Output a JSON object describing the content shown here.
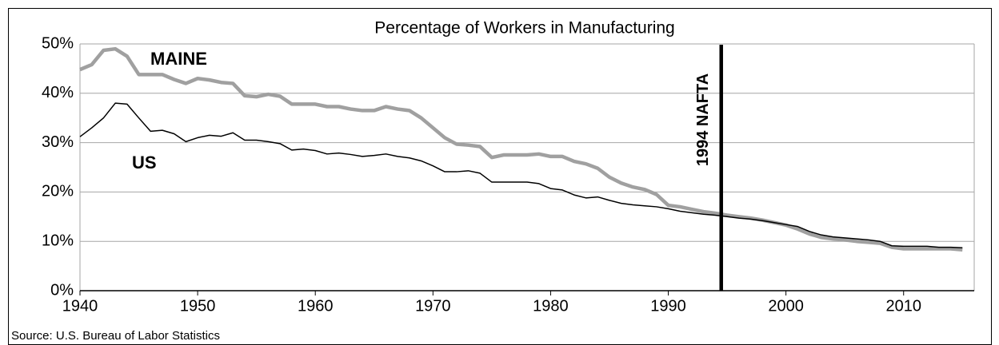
{
  "chart_data": {
    "type": "line",
    "title": "Percentage of Workers in Manufacturing",
    "source": "Source: U.S. Bureau of Labor Statistics",
    "x": [
      1940,
      1941,
      1942,
      1943,
      1944,
      1945,
      1946,
      1947,
      1948,
      1949,
      1950,
      1951,
      1952,
      1953,
      1954,
      1955,
      1956,
      1957,
      1958,
      1959,
      1960,
      1961,
      1962,
      1963,
      1964,
      1965,
      1966,
      1967,
      1968,
      1969,
      1970,
      1971,
      1972,
      1973,
      1974,
      1975,
      1976,
      1977,
      1978,
      1979,
      1980,
      1981,
      1982,
      1983,
      1984,
      1985,
      1986,
      1987,
      1988,
      1989,
      1990,
      1991,
      1992,
      1993,
      1994,
      1995,
      1996,
      1997,
      1998,
      1999,
      2000,
      2001,
      2002,
      2003,
      2004,
      2005,
      2006,
      2007,
      2008,
      2009,
      2010,
      2011,
      2012,
      2013,
      2014,
      2015
    ],
    "series": [
      {
        "name": "MAINE",
        "color": "#a0a0a0",
        "values": [
          44.8,
          45.8,
          48.7,
          49,
          47.5,
          43.8,
          43.8,
          43.8,
          42.8,
          42,
          43,
          42.7,
          42.2,
          42,
          39.5,
          39.3,
          39.8,
          39.4,
          37.8,
          37.8,
          37.8,
          37.3,
          37.3,
          36.8,
          36.5,
          36.5,
          37.3,
          36.8,
          36.5,
          35,
          33,
          31,
          29.7,
          29.5,
          29.2,
          27,
          27.5,
          27.5,
          27.5,
          27.7,
          27.2,
          27.2,
          26.2,
          25.7,
          24.8,
          23,
          21.8,
          21,
          20.5,
          19.5,
          17.3,
          17,
          16.5,
          16,
          15.7,
          15.3,
          15,
          14.7,
          14.3,
          13.8,
          13.3,
          12.5,
          11.5,
          10.8,
          10.5,
          10.3,
          10,
          9.8,
          9.6,
          8.8,
          8.5,
          8.5,
          8.5,
          8.5,
          8.5,
          8.3
        ]
      },
      {
        "name": "US",
        "color": "#000000",
        "values": [
          31.2,
          33,
          35,
          38,
          37.8,
          35,
          32.3,
          32.5,
          31.8,
          30.2,
          31,
          31.5,
          31.3,
          32,
          30.5,
          30.5,
          30.2,
          29.8,
          28.5,
          28.7,
          28.4,
          27.7,
          27.9,
          27.6,
          27.2,
          27.4,
          27.7,
          27.2,
          26.9,
          26.3,
          25.3,
          24.1,
          24.1,
          24.3,
          23.8,
          22,
          22,
          22,
          22,
          21.7,
          20.7,
          20.4,
          19.4,
          18.8,
          19,
          18.3,
          17.7,
          17.4,
          17.2,
          17,
          16.6,
          16.1,
          15.8,
          15.5,
          15.3,
          15,
          14.7,
          14.5,
          14.2,
          13.8,
          13.4,
          13,
          12,
          11.3,
          10.9,
          10.7,
          10.5,
          10.3,
          10,
          9.1,
          9,
          9,
          9,
          8.8,
          8.8,
          8.7
        ]
      }
    ],
    "annotations": [
      {
        "text": "1994 NAFTA",
        "x": 1994.5
      }
    ],
    "xlim": [
      1940,
      2016
    ],
    "xticks": [
      1940,
      1950,
      1960,
      1970,
      1980,
      1990,
      2000,
      2010
    ],
    "ylim": [
      0,
      50
    ],
    "yticks": [
      {
        "value": 0,
        "label": "0%"
      },
      {
        "value": 10,
        "label": "10%"
      },
      {
        "value": 20,
        "label": "20%"
      },
      {
        "value": 30,
        "label": "30%"
      },
      {
        "value": 40,
        "label": "40%"
      },
      {
        "value": 50,
        "label": "50%"
      }
    ],
    "grid": true
  }
}
